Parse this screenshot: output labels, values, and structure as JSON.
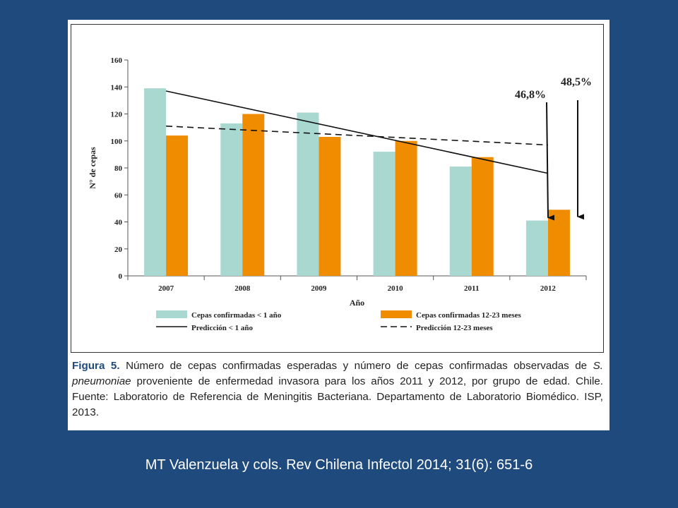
{
  "chart_data": {
    "type": "bar",
    "categories": [
      "2007",
      "2008",
      "2009",
      "2010",
      "2011",
      "2012"
    ],
    "series": [
      {
        "name": "Cepas confirmadas < 1 año",
        "values": [
          139,
          113,
          121,
          92,
          81,
          41
        ],
        "color": "#a8d8d0"
      },
      {
        "name": "Cepas confirmadas 12-23 meses",
        "values": [
          104,
          120,
          103,
          100,
          88,
          49
        ],
        "color": "#f08c00"
      }
    ],
    "trend_lines": [
      {
        "name": "Predicción < 1 año",
        "style": "solid",
        "from": {
          "x": "2007",
          "y": 137
        },
        "to": {
          "x": "2012",
          "y": 76
        }
      },
      {
        "name": "Predicción 12-23 meses",
        "style": "dashed",
        "from": {
          "x": "2007",
          "y": 111
        },
        "to": {
          "x": "2012",
          "y": 97
        }
      }
    ],
    "annotations": [
      {
        "text": "46,8%",
        "target_series": 0,
        "target_category": "2012"
      },
      {
        "text": "48,5%",
        "target_series": 1,
        "target_category": "2012"
      }
    ],
    "xlabel": "Año",
    "ylabel": "N° de cepas",
    "ylim": [
      0,
      160
    ],
    "yticks": [
      0,
      20,
      40,
      60,
      80,
      100,
      120,
      140,
      160
    ],
    "grid": false,
    "legend_position": "bottom"
  },
  "caption": {
    "label": "Figura 5.",
    "text_before_species": "Número de cepas confirmadas esperadas y número de cepas confirmadas observadas de",
    "species": "S. pneumoniae",
    "text_after_species": "proveniente de enfermedad invasora  para los años 2011 y 2012, por grupo de edad. Chile. Fuente: Laboratorio de Referencia de Meningitis Bacteriana. Departamento de Laboratorio Biomédico. ISP, 2013."
  },
  "citation": "MT Valenzuela y cols. Rev Chilena Infectol 2014; 31(6): 651-6"
}
